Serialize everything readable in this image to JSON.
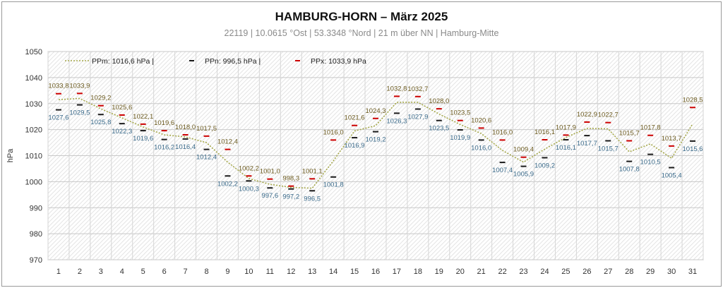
{
  "title": "HAMBURG-HORN   –  März 2025",
  "subtitle": "22119  |  10.0615 °Ost  |  53.3348 °Nord  | 21 m über NN  |  Hamburg-Mitte",
  "chart_data": {
    "type": "line",
    "ylabel": "hPa",
    "ylim": [
      970,
      1050
    ],
    "yticks": [
      970,
      980,
      990,
      1000,
      1010,
      1020,
      1030,
      1040,
      1050
    ],
    "x": [
      1,
      2,
      3,
      4,
      5,
      6,
      7,
      8,
      9,
      10,
      11,
      12,
      13,
      14,
      15,
      16,
      17,
      18,
      19,
      20,
      21,
      22,
      23,
      24,
      25,
      26,
      27,
      28,
      29,
      30,
      31
    ],
    "xticklabels": [
      "1",
      "2",
      "3",
      "4",
      "5",
      "6",
      "7",
      "8",
      "9",
      "10",
      "11",
      "12",
      "13",
      "14",
      "15",
      "16",
      "17",
      "18",
      "19",
      "20",
      "21",
      "22",
      "23",
      "24",
      "25",
      "26",
      "27",
      "28",
      "29",
      "30",
      "31"
    ],
    "grid": true,
    "legend_position": "top-left",
    "legend": [
      {
        "label": "PPm: 1016,6 hPa  |",
        "style": "dotted-line",
        "color": "#a5a84a"
      },
      {
        "label": "PPn: 996,5 hPa  |",
        "style": "dash-marker",
        "color": "#1a1a1a"
      },
      {
        "label": "PPx: 1033,9 hPa",
        "style": "dash-marker",
        "color": "#cc0000"
      }
    ],
    "series": [
      {
        "name": "PPx",
        "color": "#cc0000",
        "values": [
          1033.8,
          1033.9,
          1029.2,
          1025.6,
          1022.1,
          1019.6,
          1018.0,
          1017.5,
          1012.4,
          1002.2,
          1001.0,
          998.3,
          1001.1,
          1016.0,
          1021.6,
          1024.3,
          1032.8,
          1032.7,
          1028.0,
          1023.5,
          1020.6,
          1016.0,
          1009.4,
          1016.1,
          1017.9,
          1022.9,
          1022.7,
          1015.7,
          1017.8,
          1013.7,
          1028.5
        ],
        "labels": [
          "1033,8",
          "1033,9",
          "1029,2",
          "1025,6",
          "1022,1",
          "1019,6",
          "1018,0",
          "1017,5",
          "1012,4",
          "1002,2",
          "1001,0",
          "998,3",
          "1001,1",
          "1016,0",
          "1021,6",
          "1024,3",
          "1032,8",
          "1032,7",
          "1028,0",
          "1023,5",
          "1020,6",
          "1016,0",
          "1009,4",
          "1016,1",
          "1017,9",
          "1022,9",
          "1022,7",
          "1015,7",
          "1017,8",
          "1013,7",
          "1028,5"
        ]
      },
      {
        "name": "PPn",
        "color": "#1a1a1a",
        "values": [
          1027.6,
          1029.5,
          1025.8,
          1022.3,
          1019.6,
          1016.2,
          1016.4,
          1012.4,
          1002.2,
          1000.3,
          997.6,
          997.2,
          996.5,
          1001.8,
          1016.9,
          1019.2,
          1026.3,
          1027.9,
          1023.5,
          1019.9,
          1016.0,
          1007.4,
          1005.9,
          1009.2,
          1016.1,
          1017.7,
          1015.7,
          1007.8,
          1010.5,
          1005.4,
          1015.6
        ],
        "labels": [
          "1027,6",
          "1029,5",
          "1025,8",
          "1022,3",
          "1019,6",
          "1016,2",
          "1016,4",
          "1012,4",
          "1002,2",
          "1000,3",
          "997,6",
          "997,2",
          "996,5",
          "1001,8",
          "1016,9",
          "1019,2",
          "1026,3",
          "1027,9",
          "1023,5",
          "1019,9",
          "1016,0",
          "1007,4",
          "1005,9",
          "1009,2",
          "1016,1",
          "1017,7",
          "1015,7",
          "1007,8",
          "1010,5",
          "1005,4",
          "1015,6"
        ]
      },
      {
        "name": "PPm",
        "color": "#a5a84a",
        "values": [
          1031.5,
          1032.0,
          1028.0,
          1024.5,
          1021.0,
          1018.0,
          1017.2,
          1015.0,
          1007.5,
          1001.2,
          999.0,
          997.8,
          997.5,
          1008.0,
          1019.5,
          1021.5,
          1030.5,
          1030.5,
          1026.0,
          1022.0,
          1018.5,
          1012.0,
          1007.5,
          1012.5,
          1017.0,
          1020.5,
          1020.3,
          1011.5,
          1014.5,
          1009.0,
          1022.2
        ]
      }
    ]
  }
}
